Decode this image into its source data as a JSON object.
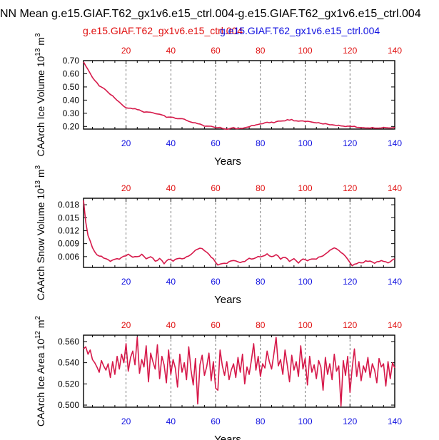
{
  "title": "NN Mean g.e15.GIAF.T62_gx1v6.e15_ctrl.004-g.e15.GIAF.T62_gx1v6.e15_ctrl.004",
  "legend": {
    "case_a": "g.e15.GIAF.T62_gx1v6.e15_ctrl.004",
    "case_b": "g.e15.GIAF.T62_gx1v6.e15_ctrl.004",
    "case_a_color": "#e01010",
    "case_b_color": "#1010e0"
  },
  "colors": {
    "series": "#d6194a",
    "top_ticks": "#e01010",
    "bottom_ticks": "#1010e0",
    "grid": "#555555"
  },
  "chart_data": [
    {
      "type": "line",
      "xlabel": "Years",
      "ylabel": "CAArch Ice Volume 10",
      "ylabel_exp": "13",
      "ylabel_unit": "m",
      "ylabel_unit_exp": "3",
      "xlim": [
        1,
        140
      ],
      "ylim": [
        0.18,
        0.7
      ],
      "xticks": [
        20,
        40,
        60,
        80,
        100,
        120,
        140
      ],
      "xtick_labels": [
        "20",
        "40",
        "60",
        "80",
        "100",
        "120",
        "140"
      ],
      "yticks": [
        0.2,
        0.3,
        0.4,
        0.5,
        0.6,
        0.7
      ],
      "ytick_labels": [
        "0.20",
        "0.30",
        "0.40",
        "0.50",
        "0.60",
        "0.70"
      ],
      "vgrid": [
        20,
        40,
        60,
        80,
        100,
        120
      ],
      "anchors": [
        [
          1,
          0.69
        ],
        [
          2,
          0.66
        ],
        [
          4,
          0.6
        ],
        [
          6,
          0.55
        ],
        [
          8,
          0.51
        ],
        [
          10,
          0.49
        ],
        [
          12,
          0.46
        ],
        [
          14,
          0.43
        ],
        [
          16,
          0.4
        ],
        [
          18,
          0.37
        ],
        [
          20,
          0.34
        ],
        [
          22,
          0.34
        ],
        [
          25,
          0.33
        ],
        [
          28,
          0.31
        ],
        [
          30,
          0.31
        ],
        [
          33,
          0.3
        ],
        [
          36,
          0.29
        ],
        [
          38,
          0.27
        ],
        [
          40,
          0.27
        ],
        [
          43,
          0.26
        ],
        [
          45,
          0.26
        ],
        [
          48,
          0.24
        ],
        [
          50,
          0.23
        ],
        [
          53,
          0.22
        ],
        [
          55,
          0.2
        ],
        [
          58,
          0.2
        ],
        [
          60,
          0.19
        ],
        [
          62,
          0.19
        ],
        [
          65,
          0.18
        ],
        [
          68,
          0.19
        ],
        [
          70,
          0.18
        ],
        [
          73,
          0.19
        ],
        [
          75,
          0.2
        ],
        [
          78,
          0.21
        ],
        [
          80,
          0.22
        ],
        [
          83,
          0.23
        ],
        [
          86,
          0.23
        ],
        [
          88,
          0.24
        ],
        [
          90,
          0.24
        ],
        [
          92,
          0.25
        ],
        [
          94,
          0.25
        ],
        [
          96,
          0.24
        ],
        [
          98,
          0.24
        ],
        [
          100,
          0.24
        ],
        [
          102,
          0.24
        ],
        [
          104,
          0.23
        ],
        [
          106,
          0.23
        ],
        [
          108,
          0.22
        ],
        [
          110,
          0.22
        ],
        [
          112,
          0.21
        ],
        [
          115,
          0.21
        ],
        [
          118,
          0.2
        ],
        [
          120,
          0.2
        ],
        [
          122,
          0.2
        ],
        [
          124,
          0.19
        ],
        [
          127,
          0.19
        ],
        [
          130,
          0.19
        ],
        [
          133,
          0.19
        ],
        [
          136,
          0.19
        ],
        [
          140,
          0.19
        ]
      ]
    },
    {
      "type": "line",
      "xlabel": "Years",
      "ylabel": "CAArch Snow Volume 10",
      "ylabel_exp": "13",
      "ylabel_unit": "m",
      "ylabel_unit_exp": "3",
      "xlim": [
        1,
        140
      ],
      "ylim": [
        0.0035,
        0.0195
      ],
      "xticks": [
        20,
        40,
        60,
        80,
        100,
        120,
        140
      ],
      "xtick_labels": [
        "20",
        "40",
        "60",
        "80",
        "100",
        "120",
        "140"
      ],
      "yticks": [
        0.006,
        0.009,
        0.012,
        0.015,
        0.018
      ],
      "ytick_labels": [
        "0.006",
        "0.009",
        "0.012",
        "0.015",
        "0.018"
      ],
      "vgrid": [
        20,
        40,
        60,
        80,
        100,
        120
      ],
      "anchors": [
        [
          1,
          0.019
        ],
        [
          2,
          0.014
        ],
        [
          3,
          0.011
        ],
        [
          5,
          0.008
        ],
        [
          7,
          0.0065
        ],
        [
          9,
          0.006
        ],
        [
          11,
          0.0055
        ],
        [
          13,
          0.005
        ],
        [
          15,
          0.0055
        ],
        [
          17,
          0.0055
        ],
        [
          19,
          0.006
        ],
        [
          21,
          0.0065
        ],
        [
          23,
          0.006
        ],
        [
          25,
          0.006
        ],
        [
          27,
          0.0065
        ],
        [
          29,
          0.0055
        ],
        [
          31,
          0.006
        ],
        [
          33,
          0.005
        ],
        [
          35,
          0.0055
        ],
        [
          37,
          0.0045
        ],
        [
          39,
          0.0055
        ],
        [
          41,
          0.005
        ],
        [
          43,
          0.0055
        ],
        [
          45,
          0.0055
        ],
        [
          47,
          0.006
        ],
        [
          49,
          0.0065
        ],
        [
          51,
          0.0075
        ],
        [
          53,
          0.008
        ],
        [
          55,
          0.0075
        ],
        [
          57,
          0.0065
        ],
        [
          59,
          0.0055
        ],
        [
          61,
          0.004
        ],
        [
          63,
          0.0045
        ],
        [
          65,
          0.0045
        ],
        [
          67,
          0.005
        ],
        [
          69,
          0.005
        ],
        [
          71,
          0.0045
        ],
        [
          73,
          0.005
        ],
        [
          75,
          0.0055
        ],
        [
          77,
          0.0055
        ],
        [
          79,
          0.006
        ],
        [
          81,
          0.006
        ],
        [
          83,
          0.0065
        ],
        [
          85,
          0.006
        ],
        [
          87,
          0.0065
        ],
        [
          89,
          0.0055
        ],
        [
          91,
          0.006
        ],
        [
          93,
          0.005
        ],
        [
          95,
          0.0055
        ],
        [
          97,
          0.0045
        ],
        [
          99,
          0.0055
        ],
        [
          101,
          0.005
        ],
        [
          103,
          0.0055
        ],
        [
          105,
          0.0055
        ],
        [
          107,
          0.006
        ],
        [
          109,
          0.0065
        ],
        [
          111,
          0.0075
        ],
        [
          113,
          0.008
        ],
        [
          115,
          0.0075
        ],
        [
          117,
          0.0065
        ],
        [
          119,
          0.0055
        ],
        [
          121,
          0.004
        ],
        [
          123,
          0.0045
        ],
        [
          125,
          0.0045
        ],
        [
          127,
          0.005
        ],
        [
          129,
          0.005
        ],
        [
          131,
          0.0045
        ],
        [
          133,
          0.005
        ],
        [
          135,
          0.005
        ],
        [
          137,
          0.0045
        ],
        [
          140,
          0.0055
        ]
      ]
    },
    {
      "type": "line",
      "xlabel": "Years",
      "ylabel": "CAArch Ice Area 10",
      "ylabel_exp": "12",
      "ylabel_unit": "m",
      "ylabel_unit_exp": "2",
      "xlim": [
        1,
        140
      ],
      "ylim": [
        0.498,
        0.566
      ],
      "xticks": [
        20,
        40,
        60,
        80,
        100,
        120,
        140
      ],
      "xtick_labels": [
        "20",
        "40",
        "60",
        "80",
        "100",
        "120",
        "140"
      ],
      "yticks": [
        0.5,
        0.52,
        0.54,
        0.56
      ],
      "ytick_labels": [
        "0.500",
        "0.520",
        "0.540",
        "0.560"
      ],
      "vgrid": [
        20,
        40,
        60,
        80,
        100,
        120
      ],
      "values": [
        0.553,
        0.555,
        0.548,
        0.552,
        0.543,
        0.54,
        0.536,
        0.531,
        0.542,
        0.537,
        0.533,
        0.539,
        0.526,
        0.541,
        0.529,
        0.546,
        0.534,
        0.548,
        0.54,
        0.558,
        0.532,
        0.545,
        0.551,
        0.538,
        0.564,
        0.53,
        0.543,
        0.536,
        0.556,
        0.522,
        0.549,
        0.541,
        0.534,
        0.557,
        0.525,
        0.546,
        0.538,
        0.521,
        0.552,
        0.529,
        0.543,
        0.535,
        0.517,
        0.548,
        0.531,
        0.54,
        0.524,
        0.555,
        0.533,
        0.519,
        0.544,
        0.501,
        0.538,
        0.547,
        0.528,
        0.536,
        0.549,
        0.523,
        0.541,
        0.516,
        0.514,
        0.552,
        0.537,
        0.528,
        0.541,
        0.524,
        0.533,
        0.539,
        0.526,
        0.545,
        0.531,
        0.548,
        0.52,
        0.536,
        0.529,
        0.543,
        0.558,
        0.533,
        0.546,
        0.527,
        0.539,
        0.535,
        0.551,
        0.541,
        0.534,
        0.548,
        0.564,
        0.537,
        0.543,
        0.529,
        0.552,
        0.538,
        0.522,
        0.547,
        0.533,
        0.541,
        0.527,
        0.556,
        0.534,
        0.544,
        0.519,
        0.546,
        0.531,
        0.538,
        0.525,
        0.542,
        0.536,
        0.514,
        0.545,
        0.529,
        0.539,
        0.524,
        0.548,
        0.532,
        0.537,
        0.499,
        0.542,
        0.528,
        0.546,
        0.512,
        0.535,
        0.553,
        0.527,
        0.541,
        0.523,
        0.537,
        0.531,
        0.545,
        0.526,
        0.539,
        0.533,
        0.521,
        0.544,
        0.536,
        0.539,
        0.518,
        0.541,
        0.525,
        0.54,
        0.535
      ]
    }
  ]
}
